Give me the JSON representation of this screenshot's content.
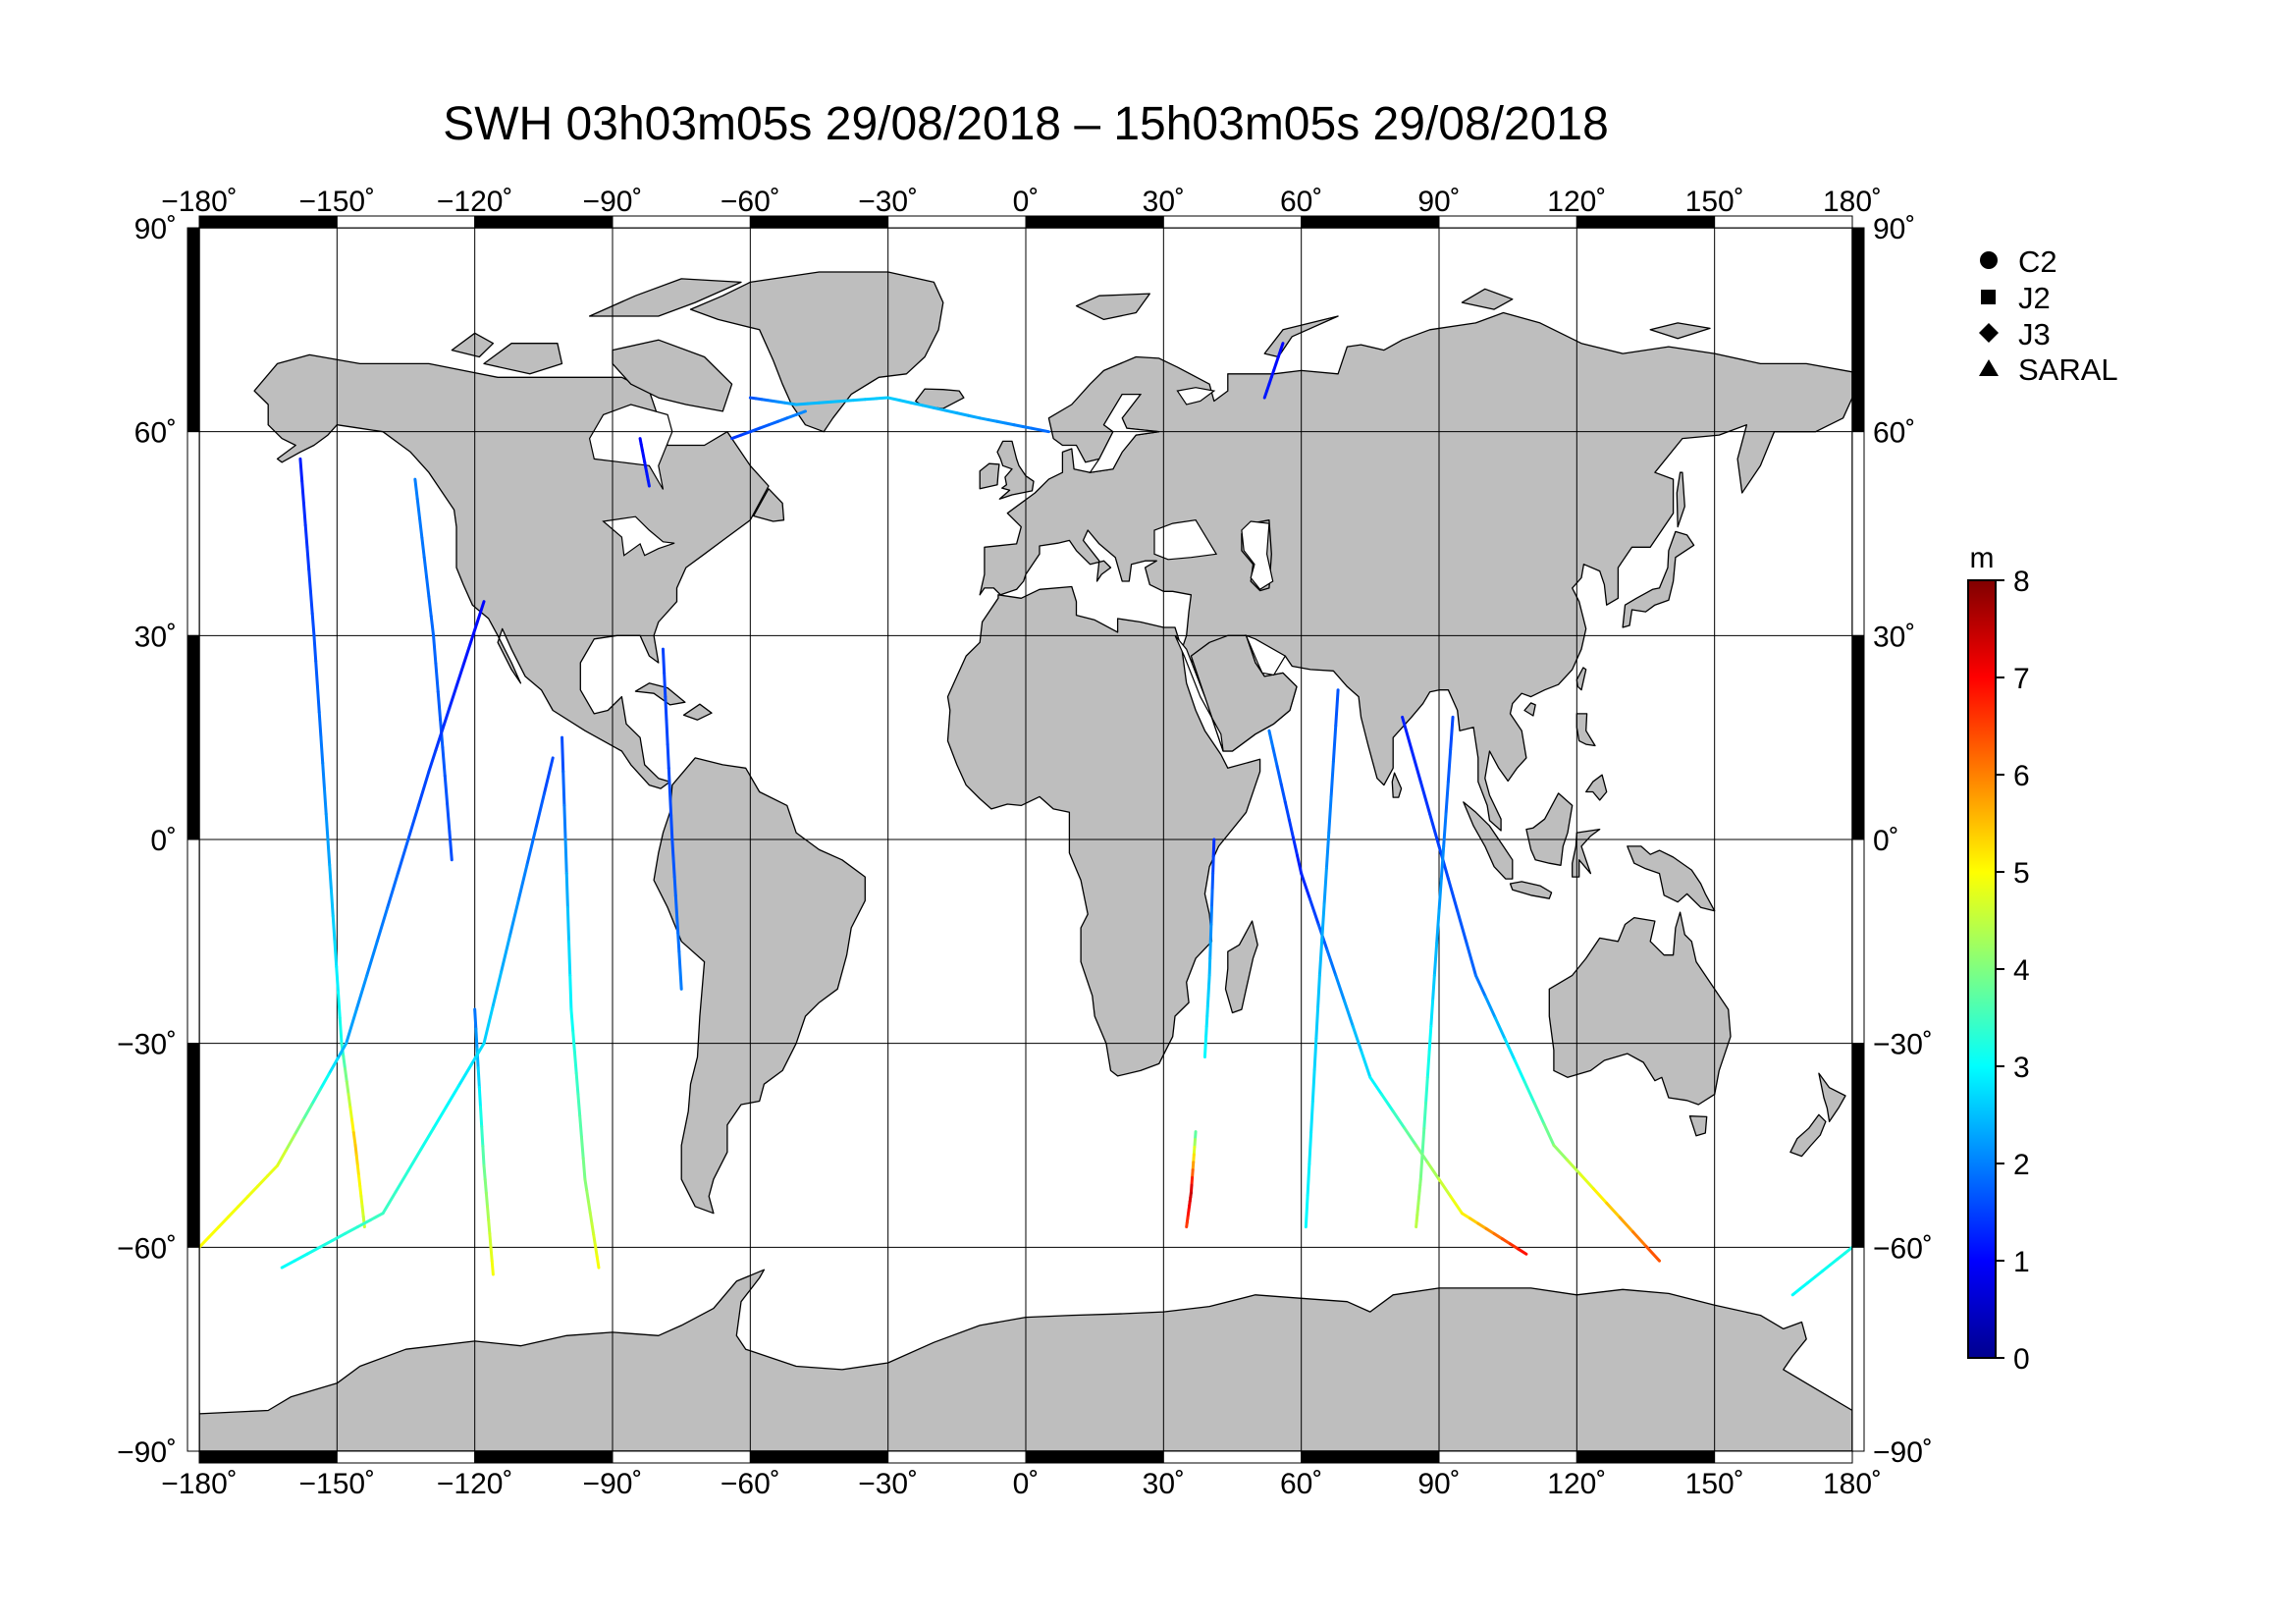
{
  "title": "SWH 03h03m05s 29/08/2018 – 15h03m05s 29/08/2018",
  "map": {
    "projection": "equirectangular",
    "lon_range": [
      -180,
      180
    ],
    "lat_range": [
      -90,
      90
    ],
    "grid_step_lon": 30,
    "grid_step_lat": 30,
    "lon_ticks": [
      "−180˚",
      "−150˚",
      "−120˚",
      "−90˚",
      "−60˚",
      "−30˚",
      "0˚",
      "30˚",
      "60˚",
      "90˚",
      "120˚",
      "150˚",
      "180˚"
    ],
    "lat_ticks_left": [
      "90˚",
      "60˚",
      "30˚",
      "0˚",
      "−30˚",
      "−60˚",
      "−90˚"
    ],
    "lat_ticks_right": [
      "90˚",
      "60˚",
      "30˚",
      "0˚",
      "−30˚",
      "−60˚",
      "−90˚"
    ],
    "colors": {
      "land": "#bebebe",
      "ocean": "#ffffff",
      "grid": "#000000",
      "frame": "#000000"
    }
  },
  "legend": {
    "items": [
      {
        "label": "C2",
        "symbol": "circle"
      },
      {
        "label": "J2",
        "symbol": "square"
      },
      {
        "label": "J3",
        "symbol": "diamond"
      },
      {
        "label": "SARAL",
        "symbol": "triangle"
      }
    ]
  },
  "colorbar": {
    "unit": "m",
    "min": 0,
    "max": 8,
    "ticks": [
      "0",
      "1",
      "2",
      "3",
      "4",
      "5",
      "6",
      "7",
      "8"
    ],
    "colormap": [
      "#00008f",
      "#0000ff",
      "#0080ff",
      "#00ffff",
      "#80ff80",
      "#ffff00",
      "#ff8000",
      "#ff0000",
      "#800000"
    ]
  },
  "chart_data": {
    "type": "map",
    "variable": "SWH",
    "unit": "m",
    "tracks": [
      {
        "points": [
          [
            -158,
            56,
            1.2
          ],
          [
            -155,
            30,
            1.6
          ],
          [
            -152,
            0,
            2.2
          ],
          [
            -149,
            -30,
            3.2
          ],
          [
            -146,
            -45,
            5.5
          ],
          [
            -144,
            -57,
            4.5
          ]
        ]
      },
      {
        "points": [
          [
            -133,
            53,
            2
          ],
          [
            -129,
            30,
            1.8
          ],
          [
            -125,
            -3,
            1.6
          ]
        ]
      },
      {
        "points": [
          [
            -118,
            35,
            1
          ],
          [
            -130,
            10,
            1.5
          ],
          [
            -148,
            -30,
            2.3
          ],
          [
            -163,
            -48,
            4.8
          ],
          [
            -180,
            -60,
            5
          ]
        ]
      },
      {
        "points": [
          [
            -120,
            -25,
            1.8
          ],
          [
            -118,
            -48,
            3.8
          ],
          [
            -116,
            -64,
            5
          ]
        ]
      },
      {
        "points": [
          [
            -101,
            15,
            1.5
          ],
          [
            -99,
            -25,
            3
          ],
          [
            -96,
            -50,
            4
          ],
          [
            -93,
            -63,
            5
          ]
        ]
      },
      {
        "points": [
          [
            -103,
            12,
            1.5
          ],
          [
            -118,
            -30,
            2.7
          ],
          [
            -140,
            -55,
            3.5
          ],
          [
            -162,
            -63,
            3
          ]
        ]
      },
      {
        "points": [
          [
            -84,
            59,
            1
          ],
          [
            -82,
            52,
            1.2
          ]
        ]
      },
      {
        "points": [
          [
            -79,
            28,
            1.5
          ],
          [
            -77,
            0,
            1.6
          ],
          [
            -75,
            -22,
            2
          ]
        ]
      },
      {
        "points": [
          [
            -60,
            65,
            1.6
          ],
          [
            -50,
            64,
            2.4
          ],
          [
            -30,
            65,
            2.6
          ],
          [
            -10,
            62,
            2.3
          ],
          [
            5,
            60,
            1.8
          ]
        ]
      },
      {
        "points": [
          [
            -48,
            63,
            2.1
          ],
          [
            -64,
            59,
            1.4
          ]
        ]
      },
      {
        "points": [
          [
            56,
            73,
            1
          ],
          [
            52,
            65,
            1.2
          ]
        ]
      },
      {
        "points": [
          [
            41,
            0,
            1.3
          ],
          [
            40,
            -20,
            2.5
          ],
          [
            39,
            -32,
            3
          ]
        ]
      },
      {
        "points": [
          [
            37,
            -43,
            3.5
          ],
          [
            36,
            -52,
            7.5
          ],
          [
            35,
            -57,
            6.5
          ]
        ]
      },
      {
        "points": [
          [
            53,
            16,
            2
          ],
          [
            60,
            -5,
            1.2
          ],
          [
            75,
            -35,
            2.8
          ],
          [
            95,
            -55,
            5
          ],
          [
            109,
            -61,
            7
          ]
        ]
      },
      {
        "points": [
          [
            68,
            22,
            1.6
          ],
          [
            64,
            -20,
            2.5
          ],
          [
            61,
            -57,
            3
          ]
        ]
      },
      {
        "points": [
          [
            82,
            18,
            1.2
          ],
          [
            98,
            -20,
            1.8
          ],
          [
            115,
            -45,
            4
          ],
          [
            138,
            -62,
            6.5
          ]
        ]
      },
      {
        "points": [
          [
            93,
            18,
            1.5
          ],
          [
            89,
            -20,
            2.5
          ],
          [
            86,
            -50,
            4
          ],
          [
            85,
            -57,
            4.5
          ]
        ]
      },
      {
        "points": [
          [
            180,
            -60,
            3.2
          ],
          [
            167,
            -67,
            3
          ]
        ]
      }
    ]
  }
}
